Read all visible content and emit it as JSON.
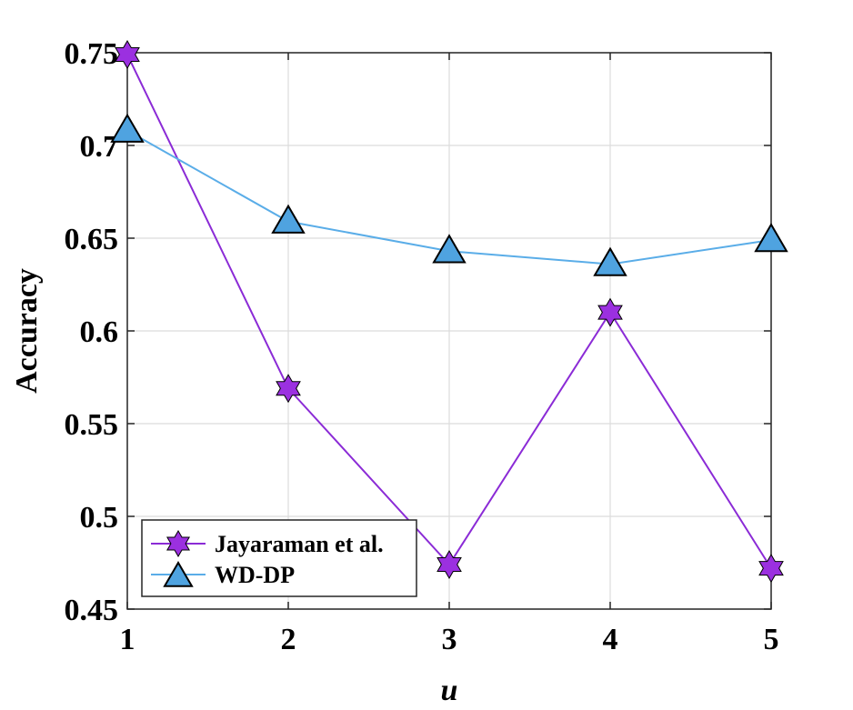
{
  "chart_data": {
    "type": "line",
    "xlabel": "u",
    "ylabel": "Accuracy",
    "x": [
      1,
      2,
      3,
      4,
      5
    ],
    "xlim": [
      1,
      5
    ],
    "ylim": [
      0.45,
      0.75
    ],
    "xticks": [
      1,
      2,
      3,
      4,
      5
    ],
    "xtick_labels": [
      "1",
      "2",
      "3",
      "4",
      "5"
    ],
    "yticks": [
      0.45,
      0.5,
      0.55,
      0.6,
      0.65,
      0.7,
      0.75
    ],
    "ytick_labels": [
      "0.45",
      "0.5",
      "0.55",
      "0.6",
      "0.65",
      "0.7",
      "0.75"
    ],
    "grid": true,
    "legend_position": "bottom-left",
    "series": [
      {
        "name": "Jayaraman et al.",
        "values": [
          0.749,
          0.569,
          0.474,
          0.61,
          0.472
        ],
        "color": "#8B2BD6",
        "marker_fill": "#9B30E0",
        "marker": "hexagram"
      },
      {
        "name": "WD-DP",
        "values": [
          0.708,
          0.659,
          0.643,
          0.636,
          0.649
        ],
        "color": "#5AADE8",
        "marker_fill": "#4FA3E0",
        "marker": "triangle"
      }
    ]
  }
}
